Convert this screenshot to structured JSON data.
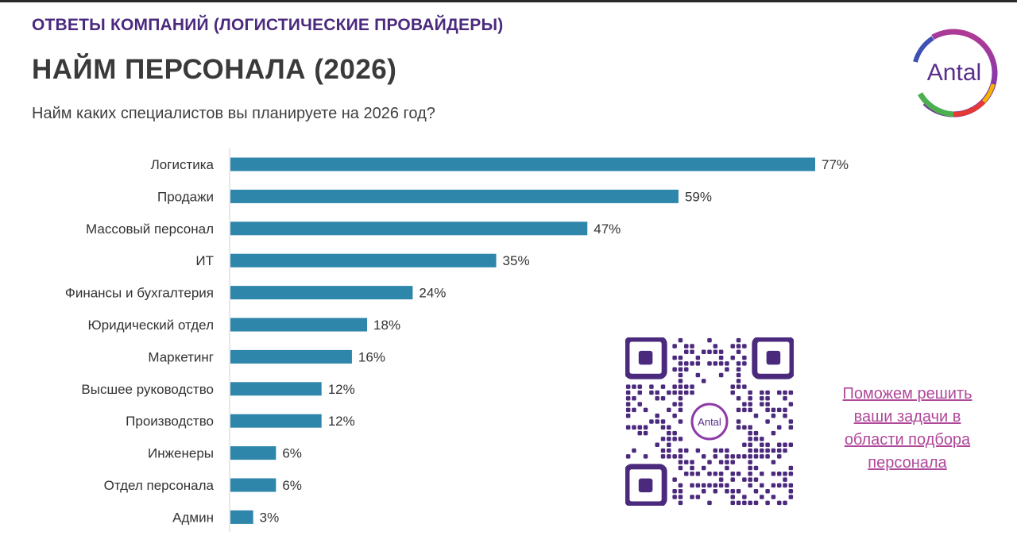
{
  "header": {
    "kicker": "ОТВЕТЫ КОМПАНИЙ (ЛОГИСТИЧЕСКИЕ ПРОВАЙДЕРЫ)",
    "title": "НАЙМ ПЕРСОНАЛА (2026)",
    "question": "Найм каких специалистов вы планируете на 2026 год?"
  },
  "logo": {
    "text": "Antal",
    "text_color": "#5a2e8a"
  },
  "qr": {
    "logo_text": "Antal",
    "color": "#4b2a7e"
  },
  "cta": {
    "text": "Поможем решить ваши задачи в области подбора персонала",
    "color": "#b0489a"
  },
  "colors": {
    "bar": "#2e86ab",
    "accent": "#4b2a7e"
  },
  "chart_data": {
    "type": "bar",
    "orientation": "horizontal",
    "categories": [
      "Логистика",
      "Продажи",
      "Массовый персонал",
      "ИТ",
      "Финансы и бухгалтерия",
      "Юридический отдел",
      "Маркетинг",
      "Высшее руководство",
      "Производство",
      "Инженеры",
      "Отдел персонала",
      "Админ"
    ],
    "values": [
      77,
      59,
      47,
      35,
      24,
      18,
      16,
      12,
      12,
      6,
      6,
      3
    ],
    "value_labels": [
      "77%",
      "59%",
      "47%",
      "35%",
      "24%",
      "18%",
      "16%",
      "12%",
      "12%",
      "6%",
      "6%",
      "3%"
    ],
    "unit": "%",
    "xlim": [
      0,
      77
    ],
    "grid": false,
    "legend": "none"
  }
}
